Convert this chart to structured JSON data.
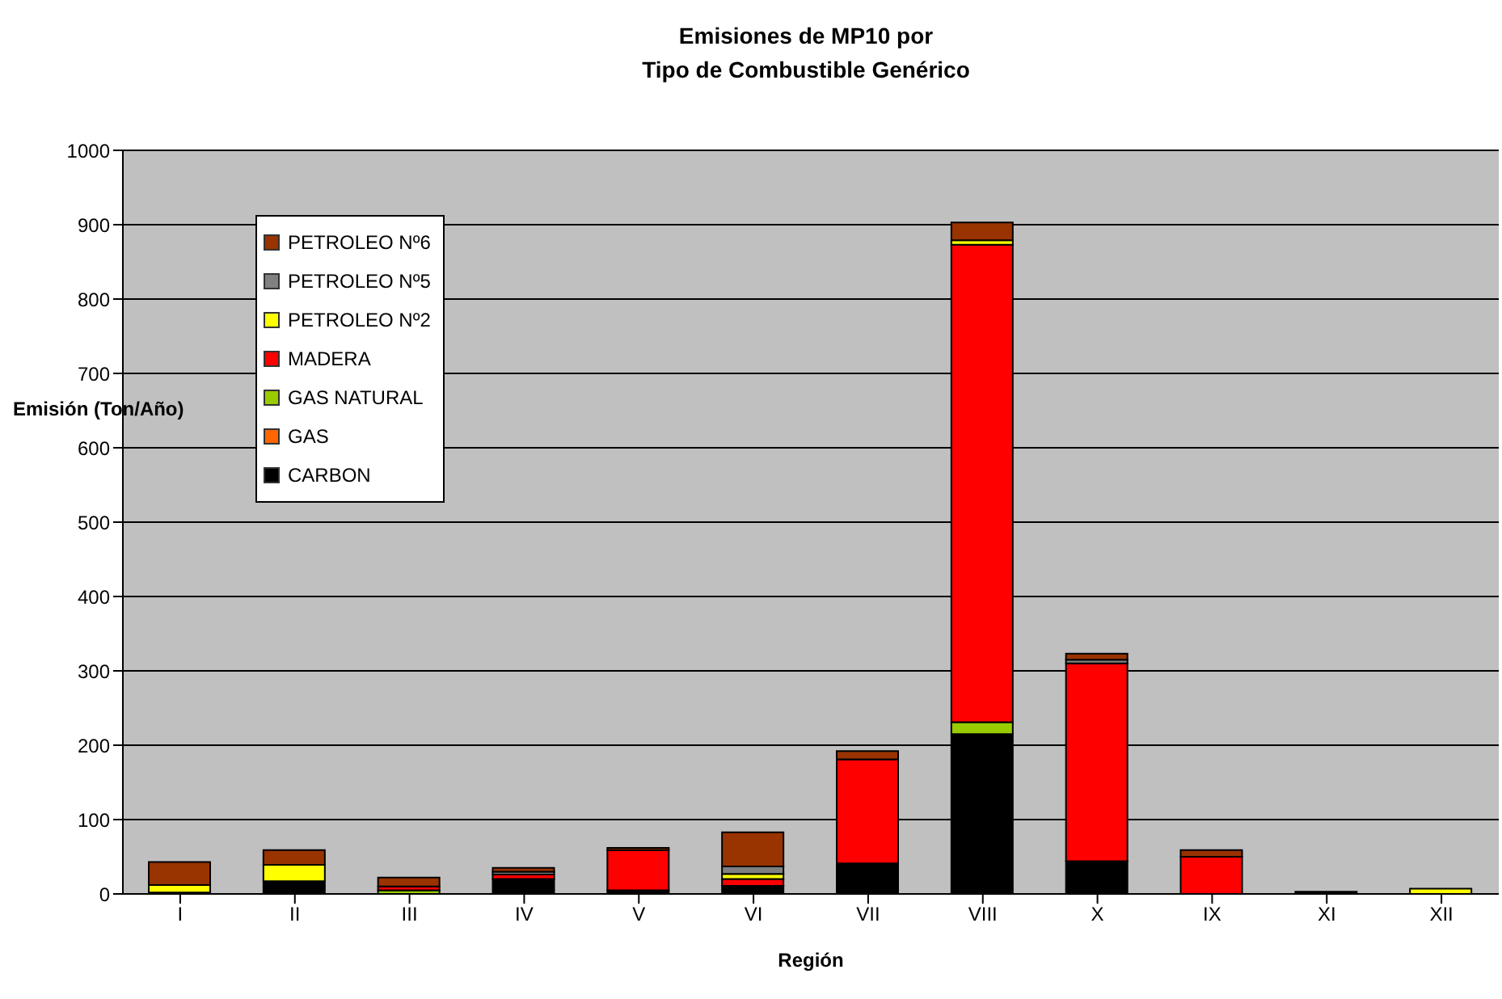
{
  "chart_data": {
    "type": "bar",
    "title": "Emisiones de MP10 por\nTipo de Combustible Genérico",
    "xlabel": "Región",
    "ylabel": "Emisión (Ton/Año)",
    "categories": [
      "I",
      "II",
      "III",
      "IV",
      "V",
      "VI",
      "VII",
      "VIII",
      "X",
      "IX",
      "XI",
      "XII"
    ],
    "stacked": true,
    "ylim": [
      0,
      1000
    ],
    "yticks": [
      0,
      100,
      200,
      300,
      400,
      500,
      600,
      700,
      800,
      900,
      1000
    ],
    "grid": "y",
    "legend": "top left",
    "series": [
      {
        "name": "CARBON",
        "color": "#000000",
        "values": [
          2,
          17,
          null,
          20,
          5,
          11,
          41,
          215,
          44,
          null,
          3,
          null
        ]
      },
      {
        "name": "GAS",
        "color": "#ff6600",
        "values": [
          null,
          null,
          null,
          null,
          null,
          null,
          null,
          null,
          null,
          null,
          null,
          null
        ]
      },
      {
        "name": "GAS NATURAL",
        "color": "#99cc00",
        "values": [
          null,
          null,
          5,
          null,
          null,
          null,
          null,
          16,
          null,
          null,
          null,
          null
        ]
      },
      {
        "name": "MADERA",
        "color": "#ff0000",
        "values": [
          null,
          null,
          5,
          6,
          54,
          9,
          140,
          642,
          266,
          50,
          null,
          null
        ]
      },
      {
        "name": "PETROLEO Nº2",
        "color": "#ffff00",
        "values": [
          10,
          22,
          null,
          null,
          null,
          7,
          null,
          6,
          null,
          null,
          null,
          7
        ]
      },
      {
        "name": "PETROLEO Nº5",
        "color": "#808080",
        "values": [
          null,
          null,
          null,
          4,
          null,
          10,
          null,
          null,
          5,
          null,
          null,
          null
        ]
      },
      {
        "name": "PETROLEO Nº6",
        "color": "#993300",
        "values": [
          31,
          20,
          12,
          5,
          3,
          46,
          11,
          24,
          8,
          9,
          null,
          null
        ]
      }
    ]
  }
}
